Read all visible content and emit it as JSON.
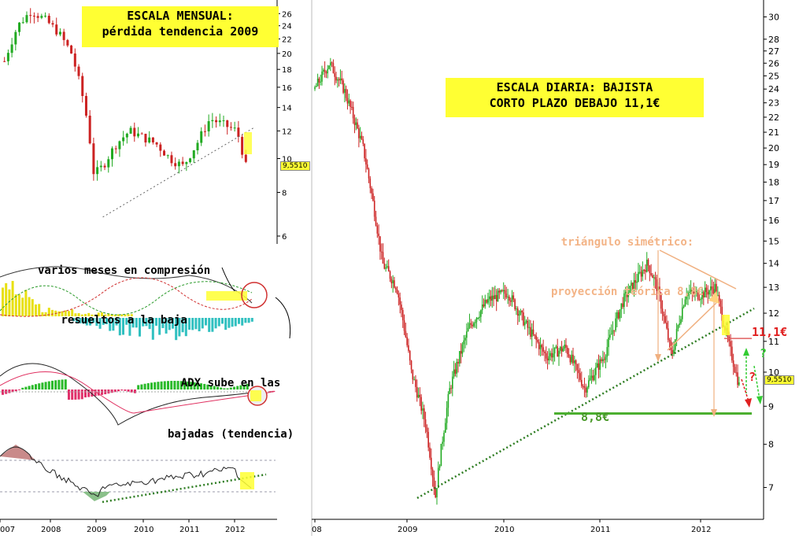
{
  "chart_data": [
    {
      "id": "monthly",
      "type": "candlestick",
      "title": "ESCALA MENSUAL:",
      "subtitle": "pérdida tendencia 2009",
      "x_ticks": [
        "007",
        "2008",
        "2009",
        "2010",
        "2011",
        "2012"
      ],
      "y_ticks": [
        6,
        8,
        10,
        12,
        14,
        16,
        18,
        20,
        22,
        24,
        26
      ],
      "ylim": [
        6,
        27
      ],
      "last_price": "9,5510",
      "series": [
        {
          "name": "close",
          "x": [
            2007.0,
            2007.3,
            2007.6,
            2007.9,
            2008.2,
            2008.5,
            2008.8,
            2009.0,
            2009.2,
            2009.5,
            2009.8,
            2010.1,
            2010.4,
            2010.7,
            2011.0,
            2011.3,
            2011.6,
            2011.9,
            2012.2,
            2012.4
          ],
          "values": [
            19,
            24,
            26.5,
            25,
            23,
            20,
            14,
            9,
            9.5,
            11,
            12,
            11.5,
            11,
            10,
            9.5,
            11,
            13,
            12.5,
            12,
            9.5
          ]
        }
      ]
    },
    {
      "id": "daily",
      "type": "candlestick",
      "title": "ESCALA DIARIA: BAJISTA",
      "subtitle": "CORTO PLAZO DEBAJO 11,1€",
      "x_ticks": [
        "08",
        "2009",
        "2010",
        "2011",
        "2012"
      ],
      "y_ticks": [
        7,
        8,
        9,
        10,
        11,
        12,
        13,
        14,
        15,
        16,
        17,
        18,
        19,
        20,
        21,
        22,
        23,
        24,
        25,
        26,
        27,
        28,
        30
      ],
      "ylim": [
        6.5,
        31
      ],
      "last_price": "9,5510",
      "series": [
        {
          "name": "close",
          "x": [
            2008.0,
            2008.15,
            2008.3,
            2008.5,
            2008.7,
            2008.85,
            2009.0,
            2009.15,
            2009.25,
            2009.4,
            2009.6,
            2009.8,
            2010.0,
            2010.2,
            2010.4,
            2010.6,
            2010.8,
            2011.0,
            2011.2,
            2011.45,
            2011.55,
            2011.7,
            2011.85,
            2012.0,
            2012.15,
            2012.3,
            2012.4
          ],
          "values": [
            24,
            26,
            24,
            20,
            14,
            13,
            10,
            8.5,
            6.8,
            9.5,
            11.5,
            12.5,
            12.8,
            11.5,
            10.5,
            10.8,
            9.5,
            10.5,
            12.5,
            14,
            13,
            10.5,
            12.8,
            12.7,
            13,
            10.8,
            9.6
          ]
        }
      ],
      "annotations": {
        "triangle_title": "triángulo simétrico:",
        "triangle_proj": "proyección teórica 8,8€",
        "level_high": "11,1€",
        "level_low": "8,8€",
        "q1": "?",
        "q2": "?"
      }
    },
    {
      "id": "adx",
      "type": "bar",
      "note_title": "varios meses en compresión",
      "note_sub": "resueltos a la baja",
      "note2_title": "ADX sube en las",
      "note2_sub": "bajadas (tendencia)"
    },
    {
      "id": "macd",
      "type": "bar"
    },
    {
      "id": "rsi",
      "type": "line"
    }
  ],
  "colors": {
    "up": "#22aa22",
    "down": "#cc2222",
    "yellow": "#ffff33",
    "green_line": "#4caf30",
    "orange": "#f0b080",
    "red": "#e02020"
  }
}
